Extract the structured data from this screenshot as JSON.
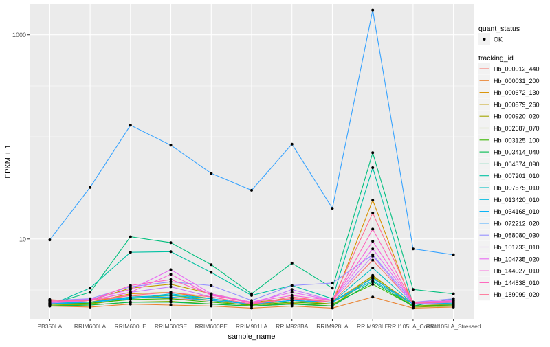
{
  "chart_data": {
    "type": "line",
    "xlabel": "sample_name",
    "ylabel": "FPKM + 1",
    "y_scale": "log10",
    "ylim": [
      1.65,
      2000
    ],
    "y_ticks": [
      {
        "value": 10,
        "label": "10"
      },
      {
        "value": 1000,
        "label": "1000"
      }
    ],
    "y_minor_ticks": [
      100
    ],
    "grid": true,
    "legend_position": "right",
    "categories": [
      "PB350LA",
      "RRIM600LA",
      "RRIM600LE",
      "RRIM600SE",
      "RRIM600PE",
      "RRIM901LA",
      "RRIM928BA",
      "RRIM928LA",
      "RRIM928LE",
      "RRII105LA_Control",
      "RRII105LA_Stressed"
    ],
    "shape_legend": {
      "title": "quant_status",
      "items": [
        {
          "label": "OK"
        }
      ]
    },
    "color_legend": {
      "title": "tracking_id"
    },
    "series": [
      {
        "name": "Hb_000012_440",
        "color": "#F8766D",
        "values": [
          2.55,
          2.4,
          2.8,
          2.6,
          2.5,
          2.3,
          2.7,
          2.4,
          6.2,
          2.35,
          2.3
        ]
      },
      {
        "name": "Hb_000031_200",
        "color": "#EA8331",
        "values": [
          2.2,
          2.15,
          2.3,
          2.25,
          2.2,
          2.1,
          2.2,
          2.1,
          2.7,
          2.1,
          2.15
        ]
      },
      {
        "name": "Hb_000672_130",
        "color": "#D89000",
        "values": [
          2.3,
          2.4,
          2.9,
          3.0,
          2.6,
          2.25,
          2.5,
          2.3,
          24.0,
          2.2,
          2.3
        ]
      },
      {
        "name": "Hb_000879_260",
        "color": "#C09B00",
        "values": [
          2.35,
          2.5,
          3.3,
          3.6,
          2.9,
          2.4,
          2.6,
          2.4,
          4.3,
          2.3,
          2.5
        ]
      },
      {
        "name": "Hb_000920_020",
        "color": "#A3A500",
        "values": [
          2.25,
          2.3,
          2.6,
          2.8,
          2.5,
          2.2,
          2.35,
          2.2,
          4.4,
          2.2,
          2.25
        ]
      },
      {
        "name": "Hb_002687_070",
        "color": "#7CAE00",
        "values": [
          2.25,
          2.25,
          2.4,
          2.45,
          2.3,
          2.2,
          2.3,
          2.2,
          4.2,
          2.15,
          2.2
        ]
      },
      {
        "name": "Hb_003125_100",
        "color": "#39B600",
        "values": [
          2.3,
          2.35,
          2.55,
          2.6,
          2.4,
          2.25,
          2.4,
          2.3,
          3.6,
          2.2,
          2.25
        ]
      },
      {
        "name": "Hb_003414_040",
        "color": "#00BB4E",
        "values": [
          2.2,
          2.25,
          2.4,
          2.4,
          2.3,
          2.2,
          2.3,
          2.2,
          3.8,
          2.2,
          2.6
        ]
      },
      {
        "name": "Hb_004374_090",
        "color": "#00BF7D",
        "values": [
          2.3,
          3.0,
          10.5,
          9.2,
          5.6,
          2.9,
          5.8,
          3.3,
          70.0,
          3.2,
          2.9
        ]
      },
      {
        "name": "Hb_007201_010",
        "color": "#00C1A3",
        "values": [
          2.25,
          3.3,
          7.4,
          7.5,
          4.7,
          2.8,
          3.5,
          2.6,
          50.0,
          2.3,
          2.4
        ]
      },
      {
        "name": "Hb_007575_010",
        "color": "#00BFC4",
        "values": [
          2.35,
          2.4,
          2.7,
          2.8,
          2.6,
          2.3,
          2.5,
          2.4,
          5.2,
          2.3,
          2.3
        ]
      },
      {
        "name": "Hb_013420_010",
        "color": "#00BAE0",
        "values": [
          2.4,
          2.4,
          2.6,
          2.9,
          2.6,
          2.3,
          2.5,
          2.4,
          3.9,
          2.3,
          2.35
        ]
      },
      {
        "name": "Hb_034168_010",
        "color": "#00B0F6",
        "values": [
          2.3,
          2.4,
          2.65,
          2.7,
          2.5,
          2.3,
          2.5,
          2.4,
          4.1,
          2.3,
          2.3
        ]
      },
      {
        "name": "Hb_072212_020",
        "color": "#35A2FF",
        "values": [
          9.8,
          32.0,
          130.0,
          83.0,
          44.0,
          30.0,
          85.0,
          20.0,
          1750.0,
          8.0,
          7.0
        ]
      },
      {
        "name": "Hb_088080_030",
        "color": "#9590FF",
        "values": [
          2.5,
          2.6,
          3.4,
          3.8,
          3.5,
          2.5,
          3.5,
          3.7,
          7.0,
          2.4,
          2.6
        ]
      },
      {
        "name": "Hb_101733_010",
        "color": "#C77CFF",
        "values": [
          2.35,
          2.5,
          3.0,
          3.4,
          2.7,
          2.3,
          3.2,
          2.5,
          6.8,
          2.3,
          2.4
        ]
      },
      {
        "name": "Hb_104735_020",
        "color": "#E76BF3",
        "values": [
          2.5,
          2.55,
          3.2,
          5.0,
          2.9,
          2.4,
          3.0,
          2.5,
          8.0,
          2.4,
          2.5
        ]
      },
      {
        "name": "Hb_144027_010",
        "color": "#FA62DB",
        "values": [
          2.4,
          2.5,
          3.0,
          4.5,
          2.8,
          2.4,
          2.8,
          2.5,
          9.5,
          2.4,
          2.45
        ]
      },
      {
        "name": "Hb_144838_010",
        "color": "#FF62BC",
        "values": [
          2.45,
          2.5,
          3.5,
          4.0,
          2.85,
          2.35,
          2.6,
          2.4,
          12.5,
          2.35,
          2.4
        ]
      },
      {
        "name": "Hb_189099_020",
        "color": "#FF6C91",
        "values": [
          2.5,
          2.5,
          2.8,
          3.0,
          2.7,
          2.3,
          2.6,
          2.5,
          18.0,
          2.4,
          2.4
        ]
      }
    ]
  }
}
